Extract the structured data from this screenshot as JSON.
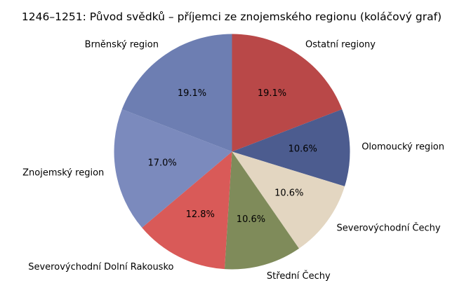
{
  "chart_data": {
    "type": "pie",
    "title": "1246–1251: Původ svědků – příjemci ze znojemského regionu (koláčový graf)",
    "start_angle_deg": 90,
    "direction": "clockwise",
    "slices": [
      {
        "label": "Ostatní regiony",
        "value": 19.1,
        "pct_label": "19.1%",
        "color": "#b94848"
      },
      {
        "label": "Olomoucký region",
        "value": 10.6,
        "pct_label": "10.6%",
        "color": "#4c5c8f"
      },
      {
        "label": "Severovýchodní Čechy",
        "value": 10.6,
        "pct_label": "10.6%",
        "color": "#e3d6c1"
      },
      {
        "label": "Střední Čechy",
        "value": 10.6,
        "pct_label": "10.6%",
        "color": "#7f8b5a"
      },
      {
        "label": "Severovýchodní Dolní Rakousko",
        "value": 12.8,
        "pct_label": "12.8%",
        "color": "#d95a58"
      },
      {
        "label": "Znojemský region",
        "value": 17.0,
        "pct_label": "17.0%",
        "color": "#7b8abd"
      },
      {
        "label": "Brněnský region",
        "value": 19.1,
        "pct_label": "19.1%",
        "color": "#6d7eb2"
      }
    ]
  }
}
